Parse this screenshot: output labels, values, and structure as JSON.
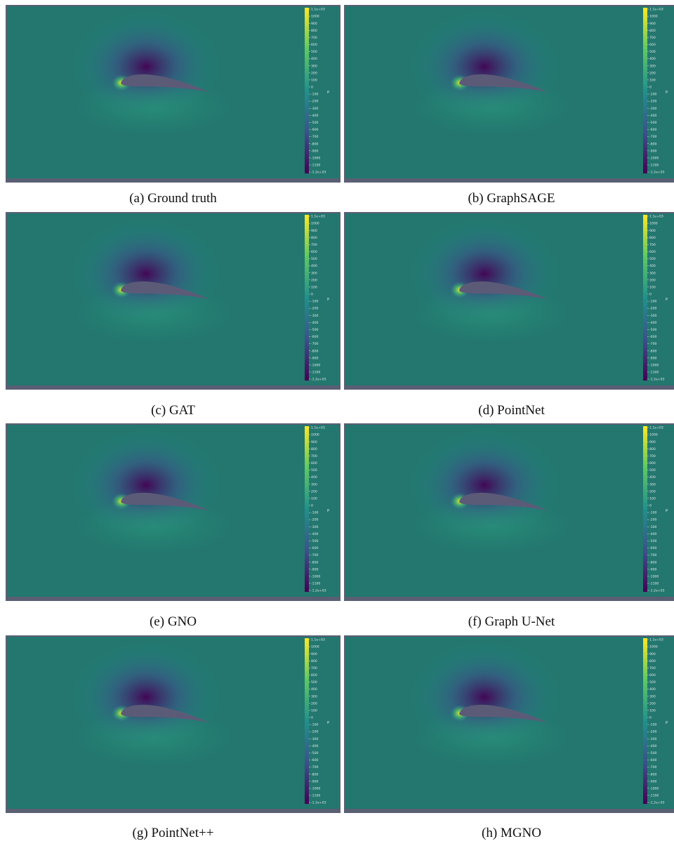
{
  "figure": {
    "colormap": [
      "#440154",
      "#3b528b",
      "#21918c",
      "#5ec962",
      "#fde725"
    ],
    "field_color": "#23776f",
    "frame_color": "#5a5f74",
    "airfoil_color": "#5b5b78",
    "colorbar": {
      "name": "p",
      "top_label": "1.1e+03",
      "bottom_label": "-1.2e+03",
      "ticks": [
        "1000",
        "900",
        "800",
        "700",
        "600",
        "500",
        "400",
        "300",
        "200",
        "100",
        "0",
        "-100",
        "-200",
        "-300",
        "-400",
        "-500",
        "-600",
        "-700",
        "-800",
        "-900",
        "-1000",
        "-1100"
      ]
    },
    "panels": [
      {
        "caption": "(a) Ground truth"
      },
      {
        "caption": "(b) GraphSAGE"
      },
      {
        "caption": "(c) GAT"
      },
      {
        "caption": "(d) PointNet"
      },
      {
        "caption": "(e) GNO"
      },
      {
        "caption": "(f) Graph U-Net"
      },
      {
        "caption": "(g) PointNet++"
      },
      {
        "caption": "(h) MGNO"
      }
    ]
  }
}
